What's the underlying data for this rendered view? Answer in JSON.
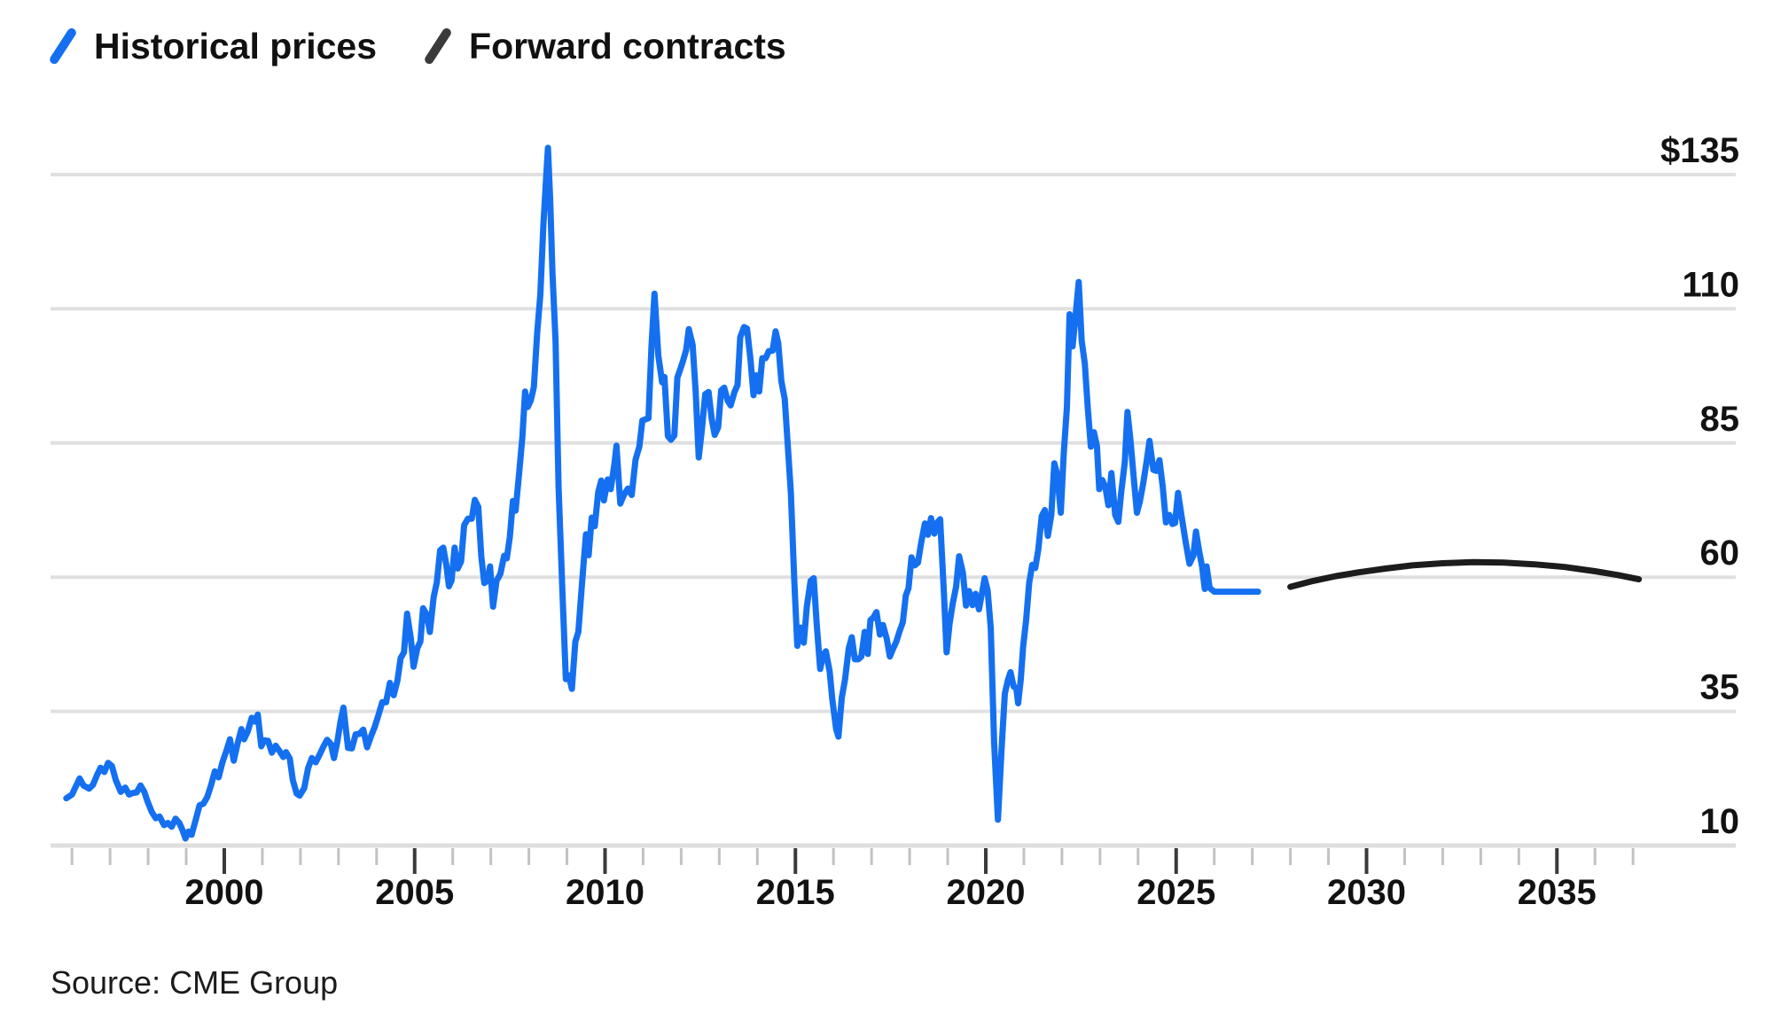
{
  "legend": {
    "items": [
      {
        "label": "Historical prices",
        "color": "#1470f0",
        "marker": "slash-icon"
      },
      {
        "label": "Forward contracts",
        "color": "#3a3a3a",
        "marker": "slash-icon"
      }
    ]
  },
  "source_note": "Source: CME Group",
  "colors": {
    "historical_line": "#1470f0",
    "forward_line": "#1c1c1c",
    "gridline": "#e0e0e0",
    "axis_line": "#dedede",
    "minor_tick": "#c2c2c2",
    "major_tick": "#3a3a3a",
    "label_text": "#121212",
    "background": "#ffffff"
  },
  "chart_data": {
    "type": "line",
    "title": "",
    "xlabel": "",
    "ylabel": "",
    "x_unit": "year",
    "xlim": [
      1995.6,
      2038.0
    ],
    "ylim": [
      10,
      135
    ],
    "grid": "horizontal",
    "legend_position": "top-left",
    "y_ticks": [
      {
        "value": 135,
        "label": "$135"
      },
      {
        "value": 110,
        "label": "110"
      },
      {
        "value": 85,
        "label": "85"
      },
      {
        "value": 60,
        "label": "60"
      },
      {
        "value": 35,
        "label": "35"
      },
      {
        "value": 10,
        "label": "10"
      }
    ],
    "x_major_ticks": [
      {
        "value": 2000,
        "label": "2000"
      },
      {
        "value": 2005,
        "label": "2005"
      },
      {
        "value": 2010,
        "label": "2010"
      },
      {
        "value": 2015,
        "label": "2015"
      },
      {
        "value": 2020,
        "label": "2020"
      },
      {
        "value": 2025,
        "label": "2025"
      },
      {
        "value": 2030,
        "label": "2030"
      },
      {
        "value": 2035,
        "label": "2035"
      }
    ],
    "x_minor_ticks": {
      "start": 1996,
      "end": 2037,
      "step": 1
    },
    "series": [
      {
        "name": "Historical prices",
        "color": "#1470f0",
        "x": [
          1995.85,
          1996.0,
          1996.1,
          1996.2,
          1996.3,
          1996.45,
          1996.55,
          1996.65,
          1996.75,
          1996.85,
          1996.95,
          1997.05,
          1997.15,
          1997.28,
          1997.4,
          1997.5,
          1997.6,
          1997.7,
          1997.8,
          1997.9,
          1997.98,
          1998.1,
          1998.2,
          1998.3,
          1998.42,
          1998.52,
          1998.62,
          1998.72,
          1998.82,
          1998.9,
          1998.98,
          1999.06,
          1999.14,
          1999.25,
          1999.35,
          1999.45,
          1999.55,
          1999.65,
          1999.75,
          1999.85,
          1999.95,
          2000.05,
          2000.15,
          2000.25,
          2000.35,
          2000.45,
          2000.52,
          2000.62,
          2000.72,
          2000.8,
          2000.88,
          2000.97,
          2001.05,
          2001.15,
          2001.25,
          2001.35,
          2001.45,
          2001.55,
          2001.62,
          2001.72,
          2001.8,
          2001.9,
          2001.98,
          2002.1,
          2002.2,
          2002.3,
          2002.4,
          2002.5,
          2002.6,
          2002.7,
          2002.8,
          2002.88,
          2002.97,
          2003.05,
          2003.13,
          2003.25,
          2003.35,
          2003.45,
          2003.55,
          2003.65,
          2003.75,
          2003.85,
          2003.95,
          2004.05,
          2004.15,
          2004.25,
          2004.35,
          2004.45,
          2004.55,
          2004.63,
          2004.72,
          2004.8,
          2004.9,
          2004.97,
          2005.07,
          2005.15,
          2005.22,
          2005.32,
          2005.4,
          2005.5,
          2005.58,
          2005.67,
          2005.75,
          2005.83,
          2005.9,
          2005.97,
          2006.05,
          2006.13,
          2006.22,
          2006.3,
          2006.4,
          2006.5,
          2006.58,
          2006.67,
          2006.75,
          2006.83,
          2006.92,
          2006.98,
          2007.06,
          2007.15,
          2007.25,
          2007.35,
          2007.42,
          2007.5,
          2007.58,
          2007.65,
          2007.75,
          2007.83,
          2007.9,
          2007.97,
          2008.05,
          2008.13,
          2008.22,
          2008.3,
          2008.38,
          2008.45,
          2008.5,
          2008.56,
          2008.62,
          2008.7,
          2008.78,
          2008.88,
          2008.97,
          2009.05,
          2009.13,
          2009.22,
          2009.3,
          2009.4,
          2009.5,
          2009.57,
          2009.65,
          2009.73,
          2009.82,
          2009.9,
          2009.97,
          2010.07,
          2010.15,
          2010.25,
          2010.3,
          2010.4,
          2010.5,
          2010.6,
          2010.7,
          2010.8,
          2010.9,
          2010.98,
          2011.06,
          2011.14,
          2011.22,
          2011.3,
          2011.4,
          2011.5,
          2011.56,
          2011.65,
          2011.73,
          2011.82,
          2011.9,
          2011.97,
          2012.05,
          2012.13,
          2012.2,
          2012.3,
          2012.38,
          2012.46,
          2012.55,
          2012.63,
          2012.72,
          2012.8,
          2012.88,
          2012.97,
          2013.05,
          2013.13,
          2013.22,
          2013.3,
          2013.4,
          2013.48,
          2013.55,
          2013.65,
          2013.73,
          2013.82,
          2013.9,
          2013.97,
          2014.05,
          2014.13,
          2014.22,
          2014.3,
          2014.4,
          2014.48,
          2014.55,
          2014.63,
          2014.72,
          2014.8,
          2014.88,
          2014.97,
          2015.05,
          2015.13,
          2015.22,
          2015.3,
          2015.4,
          2015.48,
          2015.56,
          2015.65,
          2015.73,
          2015.8,
          2015.9,
          2015.97,
          2016.07,
          2016.13,
          2016.22,
          2016.3,
          2016.4,
          2016.48,
          2016.56,
          2016.65,
          2016.73,
          2016.82,
          2016.9,
          2016.97,
          2017.05,
          2017.13,
          2017.22,
          2017.3,
          2017.4,
          2017.48,
          2017.56,
          2017.65,
          2017.73,
          2017.82,
          2017.9,
          2017.97,
          2018.05,
          2018.13,
          2018.22,
          2018.3,
          2018.4,
          2018.48,
          2018.56,
          2018.65,
          2018.73,
          2018.8,
          2018.9,
          2018.97,
          2019.05,
          2019.13,
          2019.22,
          2019.3,
          2019.4,
          2019.48,
          2019.56,
          2019.65,
          2019.73,
          2019.82,
          2019.9,
          2019.97,
          2020.05,
          2020.13,
          2020.22,
          2020.32,
          2020.42,
          2020.5,
          2020.58,
          2020.65,
          2020.73,
          2020.8,
          2020.85,
          2020.92,
          2020.98,
          2021.06,
          2021.14,
          2021.22,
          2021.3,
          2021.38,
          2021.47,
          2021.55,
          2021.63,
          2021.72,
          2021.8,
          2021.88,
          2021.97,
          2022.05,
          2022.13,
          2022.2,
          2022.28,
          2022.35,
          2022.44,
          2022.52,
          2022.6,
          2022.68,
          2022.76,
          2022.84,
          2022.92,
          2022.98,
          2023.06,
          2023.14,
          2023.22,
          2023.3,
          2023.4,
          2023.48,
          2023.56,
          2023.65,
          2023.72,
          2023.8,
          2023.9,
          2023.97,
          2024.05,
          2024.13,
          2024.22,
          2024.3,
          2024.4,
          2024.48,
          2024.56,
          2024.65,
          2024.73,
          2024.82,
          2024.9,
          2024.97,
          2025.05,
          2025.15,
          2025.25,
          2025.35,
          2025.45,
          2025.52,
          2025.6,
          2025.68,
          2025.75,
          2025.8,
          2025.88,
          2026.0,
          2026.4,
          2026.8,
          2027.15
        ],
        "y": [
          18.8,
          19.5,
          21.0,
          22.5,
          21.2,
          20.6,
          21.3,
          23.0,
          24.5,
          23.7,
          25.4,
          24.8,
          22.2,
          20.0,
          20.8,
          19.5,
          19.8,
          19.9,
          21.2,
          20.0,
          18.3,
          16.2,
          15.1,
          15.4,
          13.8,
          14.2,
          13.5,
          15.0,
          14.2,
          12.9,
          11.3,
          12.6,
          12.0,
          14.8,
          17.5,
          17.8,
          19.0,
          21.2,
          23.8,
          22.7,
          25.5,
          27.5,
          29.8,
          25.8,
          29.0,
          31.7,
          29.8,
          31.3,
          33.8,
          33.1,
          34.4,
          28.5,
          29.6,
          29.5,
          27.3,
          28.6,
          27.6,
          26.5,
          27.4,
          26.2,
          22.2,
          19.7,
          19.3,
          20.7,
          24.4,
          26.3,
          25.5,
          26.9,
          28.4,
          29.7,
          28.9,
          26.3,
          29.4,
          33.0,
          35.7,
          28.2,
          28.1,
          30.7,
          30.8,
          31.6,
          28.3,
          30.3,
          32.1,
          34.3,
          36.7,
          36.7,
          40.3,
          38.0,
          40.8,
          44.9,
          46.0,
          53.2,
          48.5,
          43.3,
          46.8,
          48.0,
          54.2,
          53.0,
          49.8,
          56.3,
          59.0,
          65.0,
          65.5,
          62.4,
          58.3,
          59.4,
          65.5,
          61.6,
          62.9,
          69.7,
          70.9,
          70.9,
          74.4,
          73.1,
          63.9,
          58.9,
          59.4,
          62.0,
          54.5,
          59.3,
          60.6,
          64.0,
          63.5,
          67.5,
          74.2,
          72.4,
          79.9,
          86.2,
          94.6,
          91.7,
          92.9,
          95.4,
          105.6,
          112.6,
          125.4,
          134.0,
          140.0,
          130.0,
          116.7,
          103.9,
          76.7,
          57.4,
          41.0,
          41.7,
          39.2,
          48.0,
          49.8,
          59.2,
          68.0,
          64.1,
          71.1,
          69.5,
          75.8,
          78.0,
          74.3,
          78.2,
          76.4,
          81.2,
          84.5,
          73.7,
          75.4,
          76.5,
          75.3,
          81.9,
          84.3,
          89.2,
          89.4,
          89.6,
          103.0,
          112.8,
          101.3,
          96.3,
          97.3,
          86.3,
          85.6,
          86.4,
          97.2,
          98.6,
          100.3,
          102.3,
          106.2,
          103.3,
          94.7,
          82.3,
          87.9,
          94.1,
          94.5,
          89.5,
          86.5,
          87.9,
          94.8,
          95.3,
          92.9,
          92.0,
          94.5,
          95.8,
          104.7,
          106.6,
          106.3,
          100.5,
          93.9,
          97.6,
          94.6,
          100.8,
          100.8,
          102.1,
          102.2,
          105.8,
          103.6,
          96.5,
          93.2,
          84.4,
          75.8,
          59.3,
          47.2,
          50.6,
          47.8,
          54.5,
          59.3,
          59.8,
          51.2,
          42.9,
          45.5,
          46.2,
          42.4,
          37.2,
          31.7,
          30.3,
          37.6,
          40.8,
          46.7,
          48.8,
          44.7,
          44.7,
          45.2,
          49.8,
          45.7,
          52.0,
          52.5,
          53.5,
          49.3,
          51.1,
          48.5,
          45.2,
          46.6,
          48.0,
          49.8,
          51.6,
          56.6,
          57.9,
          63.7,
          62.2,
          62.7,
          66.3,
          70.0,
          67.9,
          71.0,
          68.1,
          70.2,
          70.8,
          57.0,
          46.0,
          51.4,
          55.0,
          58.2,
          63.9,
          60.8,
          54.7,
          57.4,
          54.8,
          56.9,
          54.0,
          57.0,
          59.8,
          57.5,
          50.5,
          29.2,
          14.8,
          28.6,
          38.3,
          40.8,
          42.3,
          39.6,
          39.4,
          36.5,
          41.0,
          47.0,
          52.0,
          59.0,
          62.3,
          61.7,
          65.2,
          71.4,
          72.5,
          67.7,
          71.6,
          81.2,
          79.1,
          72.0,
          83.2,
          91.6,
          109.0,
          103.0,
          108.0,
          115.0,
          104.0,
          99.8,
          91.4,
          84.3,
          87.0,
          84.4,
          76.4,
          78.1,
          76.8,
          73.4,
          79.4,
          71.6,
          70.3,
          76.0,
          81.4,
          90.8,
          85.5,
          77.4,
          72.0,
          74.2,
          77.3,
          81.3,
          85.4,
          80.0,
          79.8,
          81.8,
          76.7,
          70.2,
          71.6,
          69.9,
          70.1,
          75.7,
          71.0,
          66.5,
          62.5,
          64.0,
          68.5,
          65.0,
          62.0,
          57.8,
          62.0,
          58.0,
          57.3,
          57.3,
          57.3,
          57.3
        ]
      },
      {
        "name": "Forward contracts",
        "color": "#1c1c1c",
        "x": [
          2028.0,
          2028.6,
          2029.2,
          2029.8,
          2030.5,
          2031.2,
          2032.0,
          2032.8,
          2033.6,
          2034.4,
          2035.2,
          2036.0,
          2036.6,
          2037.15
        ],
        "y": [
          58.2,
          59.3,
          60.2,
          60.9,
          61.6,
          62.2,
          62.6,
          62.8,
          62.7,
          62.4,
          61.9,
          61.1,
          60.4,
          59.6
        ]
      }
    ]
  }
}
